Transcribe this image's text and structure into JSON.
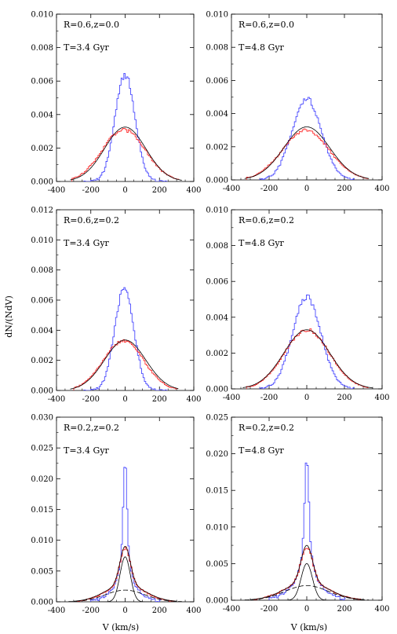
{
  "figure": {
    "ylabel": "dN/(NdV)",
    "xlabel": "V (km/s)"
  },
  "chart_data": [
    {
      "type": "line",
      "annotations": [
        "R=0.6,z=0.0",
        "T=3.4 Gyr"
      ],
      "xlim": [
        -400,
        400
      ],
      "ylim": [
        0,
        0.01
      ],
      "xticks": [
        -400,
        -200,
        0,
        200,
        400
      ],
      "xticklabels": [
        "-400",
        "-200",
        "0",
        "200",
        "400"
      ],
      "yticks": [
        0,
        0.002,
        0.004,
        0.006,
        0.008,
        0.01
      ],
      "yticklabels": [
        "0.000",
        "0.002",
        "0.004",
        "0.006",
        "0.008",
        "0.010"
      ],
      "grid": false,
      "series": [
        {
          "kind": "hist",
          "color": "#4a4aff",
          "amp": 0.0064,
          "mu": 0,
          "sigma": 58,
          "range": [
            -240,
            240
          ]
        },
        {
          "kind": "hist",
          "color": "#ff3030",
          "amp": 0.0031,
          "mu": -8,
          "sigma": 125,
          "range": [
            -310,
            310
          ]
        },
        {
          "kind": "curve",
          "color": "#000000",
          "amp": 0.00325,
          "mu": 0,
          "sigma": 120,
          "range": [
            -320,
            330
          ]
        }
      ]
    },
    {
      "type": "line",
      "annotations": [
        "R=0.6,z=0.0",
        "T=4.8 Gyr"
      ],
      "xlim": [
        -400,
        400
      ],
      "ylim": [
        0,
        0.01
      ],
      "xticks": [
        -400,
        -200,
        0,
        200,
        400
      ],
      "xticklabels": [
        "-400",
        "-200",
        "0",
        "200",
        "400"
      ],
      "yticks": [
        0,
        0.002,
        0.004,
        0.006,
        0.008,
        0.01
      ],
      "yticklabels": [
        "0.000",
        "0.002",
        "0.004",
        "0.006",
        "0.008",
        "0.010"
      ],
      "grid": false,
      "series": [
        {
          "kind": "hist",
          "color": "#4a4aff",
          "amp": 0.0049,
          "mu": 0,
          "sigma": 78,
          "range": [
            -250,
            250
          ]
        },
        {
          "kind": "hist",
          "color": "#ff3030",
          "amp": 0.003,
          "mu": -5,
          "sigma": 125,
          "range": [
            -320,
            320
          ]
        },
        {
          "kind": "curve",
          "color": "#000000",
          "amp": 0.0032,
          "mu": 0,
          "sigma": 122,
          "range": [
            -330,
            330
          ]
        }
      ]
    },
    {
      "type": "line",
      "annotations": [
        "R=0.6,z=0.2",
        "T=3.4 Gyr"
      ],
      "xlim": [
        -400,
        400
      ],
      "ylim": [
        0,
        0.012
      ],
      "xticks": [
        -400,
        -200,
        0,
        200,
        400
      ],
      "xticklabels": [
        "-400",
        "-200",
        "0",
        "200",
        "400"
      ],
      "yticks": [
        0,
        0.002,
        0.004,
        0.006,
        0.008,
        0.01,
        0.012
      ],
      "yticklabels": [
        "0.000",
        "0.002",
        "0.004",
        "0.006",
        "0.008",
        "0.010",
        "0.012"
      ],
      "grid": false,
      "series": [
        {
          "kind": "hist",
          "color": "#4a4aff",
          "amp": 0.0068,
          "mu": -5,
          "sigma": 56,
          "range": [
            -240,
            240
          ]
        },
        {
          "kind": "hist",
          "color": "#ff3030",
          "amp": 0.0033,
          "mu": -10,
          "sigma": 118,
          "range": [
            -300,
            300
          ]
        },
        {
          "kind": "curve",
          "color": "#000000",
          "amp": 0.00335,
          "mu": 0,
          "sigma": 120,
          "range": [
            -320,
            310
          ]
        }
      ]
    },
    {
      "type": "line",
      "annotations": [
        "R=0.6,z=0.2",
        "T=4.8 Gyr"
      ],
      "xlim": [
        -400,
        400
      ],
      "ylim": [
        0,
        0.01
      ],
      "xticks": [
        -400,
        -200,
        0,
        200,
        400
      ],
      "xticklabels": [
        "-400",
        "-200",
        "0",
        "200",
        "400"
      ],
      "yticks": [
        0,
        0.002,
        0.004,
        0.006,
        0.008,
        0.01
      ],
      "yticklabels": [
        "0.000",
        "0.002",
        "0.004",
        "0.006",
        "0.008",
        "0.010"
      ],
      "grid": false,
      "series": [
        {
          "kind": "hist",
          "color": "#4a4aff",
          "amp": 0.0051,
          "mu": 0,
          "sigma": 76,
          "range": [
            -250,
            250
          ]
        },
        {
          "kind": "hist",
          "color": "#ff3030",
          "amp": 0.0033,
          "mu": 0,
          "sigma": 120,
          "range": [
            -320,
            320
          ]
        },
        {
          "kind": "curve",
          "color": "#000000",
          "amp": 0.0033,
          "mu": 0,
          "sigma": 122,
          "range": [
            -340,
            350
          ]
        }
      ]
    },
    {
      "type": "line",
      "annotations": [
        "R=0.2,z=0.2",
        "T=3.4 Gyr"
      ],
      "xlim": [
        -400,
        400
      ],
      "ylim": [
        0,
        0.03
      ],
      "xticks": [
        -400,
        -200,
        0,
        200,
        400
      ],
      "xticklabels": [
        "-400",
        "-200",
        "0",
        "200",
        "400"
      ],
      "yticks": [
        0,
        0.005,
        0.01,
        0.015,
        0.02,
        0.025,
        0.03
      ],
      "yticklabels": [
        "0.000",
        "0.005",
        "0.010",
        "0.015",
        "0.020",
        "0.025",
        "0.030"
      ],
      "grid": false,
      "series": [
        {
          "kind": "hist",
          "color": "#4a4aff",
          "amp": 0.0228,
          "mu": 0,
          "sigma": 10,
          "range": [
            -200,
            200
          ],
          "components": [
            [
              0.014,
              10
            ],
            [
              0.006,
              28
            ],
            [
              0.0028,
              80
            ]
          ]
        },
        {
          "kind": "hist",
          "color": "#ff3030",
          "amp": 0.0088,
          "mu": 0,
          "sigma": 60,
          "range": [
            -280,
            280
          ],
          "components": [
            [
              0.006,
              30
            ],
            [
              0.0028,
              110
            ]
          ]
        },
        {
          "kind": "curve",
          "color": "#000000",
          "amp": 0.009,
          "mu": 0,
          "sigma": 60,
          "range": [
            -300,
            300
          ],
          "components": [
            [
              0.0062,
              30
            ],
            [
              0.0028,
              115
            ]
          ]
        },
        {
          "kind": "curve",
          "color": "#000000",
          "amp": 0.0073,
          "mu": 0,
          "sigma": 30,
          "range": [
            -150,
            150
          ]
        },
        {
          "kind": "dashed",
          "color": "#000000",
          "amp": 0.0019,
          "mu": 0,
          "sigma": 115,
          "range": [
            -330,
            330
          ]
        }
      ]
    },
    {
      "type": "line",
      "annotations": [
        "R=0.2,z=0.2",
        "T=4.8 Gyr"
      ],
      "xlim": [
        -400,
        400
      ],
      "ylim": [
        0,
        0.025
      ],
      "xticks": [
        -400,
        -200,
        0,
        200,
        400
      ],
      "xticklabels": [
        "-400",
        "-200",
        "0",
        "200",
        "400"
      ],
      "yticks": [
        0,
        0.005,
        0.01,
        0.015,
        0.02,
        0.025
      ],
      "yticklabels": [
        "0.000",
        "0.005",
        "0.010",
        "0.015",
        "0.020",
        "0.025"
      ],
      "grid": false,
      "series": [
        {
          "kind": "hist",
          "color": "#4a4aff",
          "amp": 0.0193,
          "mu": 0,
          "sigma": 10,
          "range": [
            -200,
            200
          ],
          "components": [
            [
              0.0115,
              10
            ],
            [
              0.005,
              28
            ],
            [
              0.0028,
              85
            ]
          ]
        },
        {
          "kind": "hist",
          "color": "#ff3030",
          "amp": 0.0073,
          "mu": 0,
          "sigma": 60,
          "range": [
            -280,
            280
          ],
          "components": [
            [
              0.0048,
              30
            ],
            [
              0.0025,
              115
            ]
          ]
        },
        {
          "kind": "curve",
          "color": "#000000",
          "amp": 0.0075,
          "mu": 0,
          "sigma": 60,
          "range": [
            -300,
            300
          ],
          "components": [
            [
              0.005,
              30
            ],
            [
              0.0025,
              115
            ]
          ]
        },
        {
          "kind": "curve",
          "color": "#000000",
          "amp": 0.005,
          "mu": 0,
          "sigma": 30,
          "range": [
            -150,
            150
          ]
        },
        {
          "kind": "dashed",
          "color": "#000000",
          "amp": 0.002,
          "mu": 0,
          "sigma": 115,
          "range": [
            -330,
            330
          ]
        }
      ]
    }
  ]
}
